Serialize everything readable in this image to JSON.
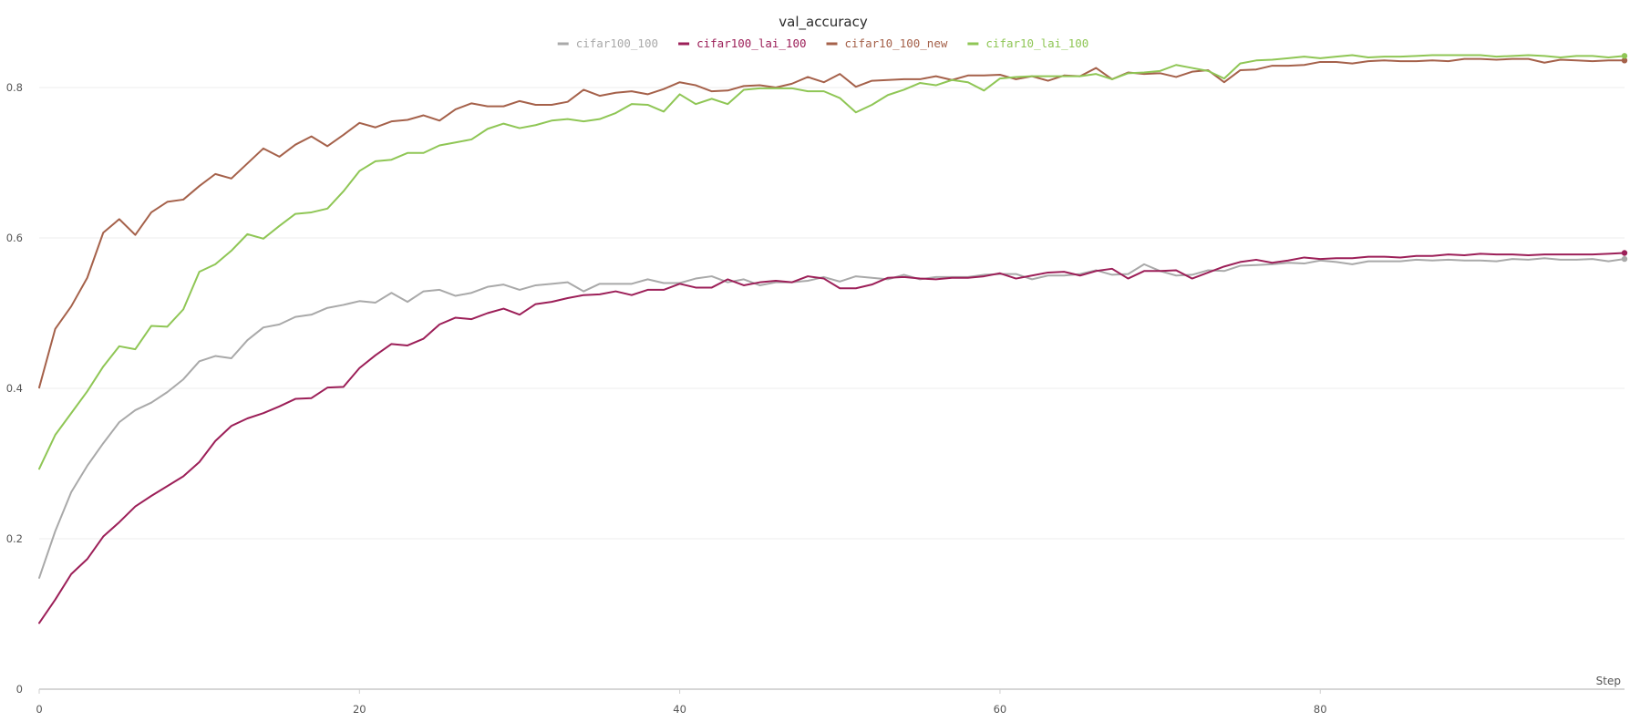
{
  "chart_data": {
    "type": "line",
    "title": "val_accuracy",
    "xlabel": "Step",
    "ylabel": "",
    "xlim": [
      0,
      99
    ],
    "ylim": [
      0,
      0.9
    ],
    "x_ticks": [
      0,
      20,
      40,
      60,
      80
    ],
    "y_ticks": [
      0,
      0.2,
      0.4,
      0.6,
      0.8
    ],
    "x_tick_labels": [
      "0",
      "20",
      "40",
      "60",
      "80"
    ],
    "y_tick_labels": [
      "0",
      "0.2",
      "0.4",
      "0.6",
      "0.8"
    ],
    "grid": true,
    "legend_position": "top",
    "series": [
      {
        "name": "cifar100_100",
        "color": "#a9a9a9",
        "values": [
          0.148,
          0.21,
          0.262,
          0.297,
          0.327,
          0.355,
          0.371,
          0.381,
          0.395,
          0.412,
          0.436,
          0.443,
          0.44,
          0.464,
          0.481,
          0.485,
          0.495,
          0.498,
          0.507,
          0.511,
          0.516,
          0.514,
          0.527,
          0.515,
          0.529,
          0.531,
          0.523,
          0.527,
          0.535,
          0.538,
          0.531,
          0.537,
          0.539,
          0.541,
          0.529,
          0.539,
          0.539,
          0.539,
          0.545,
          0.54,
          0.54,
          0.546,
          0.549,
          0.541,
          0.545,
          0.537,
          0.541,
          0.541,
          0.543,
          0.548,
          0.542,
          0.549,
          0.547,
          0.545,
          0.551,
          0.545,
          0.548,
          0.548,
          0.548,
          0.551,
          0.552,
          0.552,
          0.545,
          0.55,
          0.55,
          0.552,
          0.557,
          0.551,
          0.552,
          0.565,
          0.556,
          0.55,
          0.551,
          0.557,
          0.556,
          0.563,
          0.564,
          0.565,
          0.567,
          0.566,
          0.57,
          0.568,
          0.565,
          0.569,
          0.569,
          0.569,
          0.571,
          0.57,
          0.571,
          0.57,
          0.57,
          0.569,
          0.572,
          0.571,
          0.573,
          0.571,
          0.571,
          0.572,
          0.569,
          0.572
        ]
      },
      {
        "name": "cifar100_lai_100",
        "color": "#9c1f58",
        "values": [
          0.088,
          0.119,
          0.153,
          0.173,
          0.203,
          0.222,
          0.243,
          0.257,
          0.27,
          0.283,
          0.302,
          0.33,
          0.35,
          0.36,
          0.367,
          0.376,
          0.386,
          0.387,
          0.401,
          0.402,
          0.427,
          0.444,
          0.459,
          0.457,
          0.466,
          0.485,
          0.494,
          0.492,
          0.5,
          0.506,
          0.498,
          0.512,
          0.515,
          0.52,
          0.524,
          0.525,
          0.529,
          0.524,
          0.531,
          0.531,
          0.539,
          0.534,
          0.534,
          0.545,
          0.537,
          0.541,
          0.543,
          0.541,
          0.549,
          0.546,
          0.533,
          0.533,
          0.538,
          0.547,
          0.548,
          0.546,
          0.545,
          0.547,
          0.547,
          0.549,
          0.553,
          0.546,
          0.55,
          0.554,
          0.555,
          0.55,
          0.556,
          0.559,
          0.546,
          0.556,
          0.556,
          0.557,
          0.546,
          0.554,
          0.562,
          0.568,
          0.571,
          0.567,
          0.57,
          0.574,
          0.572,
          0.573,
          0.573,
          0.575,
          0.575,
          0.574,
          0.576,
          0.576,
          0.578,
          0.577,
          0.579,
          0.578,
          0.578,
          0.577,
          0.578,
          0.578,
          0.578,
          0.578,
          0.579,
          0.58
        ]
      },
      {
        "name": "cifar10_100_new",
        "color": "#a5614a",
        "values": [
          0.401,
          0.479,
          0.509,
          0.547,
          0.607,
          0.625,
          0.604,
          0.634,
          0.648,
          0.651,
          0.669,
          0.685,
          0.679,
          0.699,
          0.719,
          0.708,
          0.724,
          0.735,
          0.722,
          0.737,
          0.753,
          0.747,
          0.755,
          0.757,
          0.763,
          0.756,
          0.771,
          0.779,
          0.775,
          0.775,
          0.782,
          0.777,
          0.777,
          0.781,
          0.797,
          0.789,
          0.793,
          0.795,
          0.791,
          0.798,
          0.807,
          0.803,
          0.795,
          0.796,
          0.802,
          0.803,
          0.8,
          0.805,
          0.814,
          0.807,
          0.818,
          0.801,
          0.809,
          0.81,
          0.811,
          0.811,
          0.815,
          0.81,
          0.816,
          0.816,
          0.817,
          0.811,
          0.815,
          0.809,
          0.816,
          0.815,
          0.826,
          0.811,
          0.82,
          0.818,
          0.819,
          0.814,
          0.821,
          0.823,
          0.807,
          0.823,
          0.824,
          0.829,
          0.829,
          0.83,
          0.834,
          0.834,
          0.832,
          0.835,
          0.836,
          0.835,
          0.835,
          0.836,
          0.835,
          0.838,
          0.838,
          0.837,
          0.838,
          0.838,
          0.833,
          0.837,
          0.836,
          0.835,
          0.836,
          0.836
        ]
      },
      {
        "name": "cifar10_lai_100",
        "color": "#8fc655",
        "values": [
          0.293,
          0.338,
          0.367,
          0.396,
          0.429,
          0.456,
          0.452,
          0.483,
          0.482,
          0.505,
          0.555,
          0.565,
          0.583,
          0.605,
          0.599,
          0.616,
          0.632,
          0.634,
          0.639,
          0.662,
          0.689,
          0.702,
          0.704,
          0.713,
          0.713,
          0.723,
          0.727,
          0.731,
          0.745,
          0.752,
          0.746,
          0.75,
          0.756,
          0.758,
          0.755,
          0.758,
          0.766,
          0.778,
          0.777,
          0.768,
          0.791,
          0.778,
          0.785,
          0.778,
          0.797,
          0.799,
          0.799,
          0.799,
          0.795,
          0.795,
          0.786,
          0.767,
          0.777,
          0.79,
          0.797,
          0.806,
          0.803,
          0.81,
          0.807,
          0.796,
          0.812,
          0.814,
          0.815,
          0.815,
          0.815,
          0.815,
          0.818,
          0.811,
          0.819,
          0.82,
          0.822,
          0.83,
          0.826,
          0.822,
          0.812,
          0.832,
          0.836,
          0.837,
          0.839,
          0.841,
          0.839,
          0.841,
          0.843,
          0.84,
          0.841,
          0.841,
          0.842,
          0.843,
          0.843,
          0.843,
          0.843,
          0.841,
          0.842,
          0.843,
          0.842,
          0.84,
          0.842,
          0.842,
          0.84,
          0.842
        ]
      }
    ]
  }
}
